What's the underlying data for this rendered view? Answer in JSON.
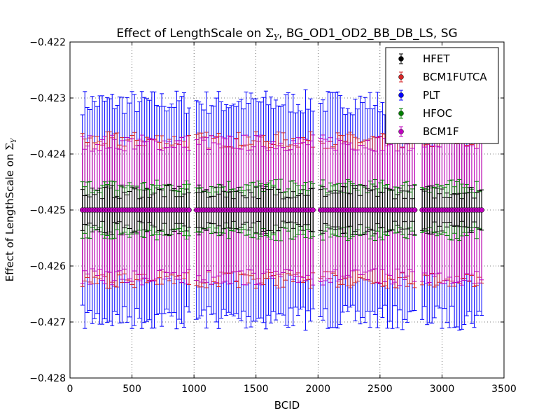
{
  "chart_data": {
    "type": "scatter",
    "title": "Effect of LengthScale on ΣY, BG_OD1_OD2_BB_DB_LS, SG",
    "title_parts": {
      "before": "Effect of LengthScale on ",
      "symbol": "Σ",
      "sub": "Y",
      "after": ", BG_OD1_OD2_BB_DB_LS, SG"
    },
    "xlabel": "BCID",
    "ylabel": "Effect of LengthScale on ΣY",
    "ylabel_parts": {
      "before": "Effect of LengthScale on ",
      "symbol": "Σ",
      "sub": "Y"
    },
    "xlim": [
      0,
      3500
    ],
    "ylim": [
      -0.428,
      -0.422
    ],
    "xticks": [
      0,
      500,
      1000,
      1500,
      2000,
      2500,
      3000,
      3500
    ],
    "yticks": [
      -0.428,
      -0.427,
      -0.426,
      -0.425,
      -0.424,
      -0.423,
      -0.422
    ],
    "xtick_labels": [
      "0",
      "500",
      "1000",
      "1500",
      "2000",
      "2500",
      "3000",
      "3500"
    ],
    "ytick_labels": [
      "−0.428",
      "−0.427",
      "−0.426",
      "−0.425",
      "−0.424",
      "−0.423",
      "−0.422"
    ],
    "grid": true,
    "legend_position": "top-right",
    "x_range": {
      "start": 100,
      "end": 3330,
      "step": 20,
      "gaps": [
        [
          980,
          1010
        ],
        [
          1970,
          2010
        ],
        [
          2790,
          2830
        ]
      ]
    },
    "y_value": -0.425,
    "series": [
      {
        "name": "HFET",
        "color": "#000000",
        "y": -0.425,
        "err_min": 0.0002,
        "err_max": 0.00045
      },
      {
        "name": "BCM1FUTCA",
        "color": "#d62728",
        "y": -0.425,
        "err_min": 0.0011,
        "err_max": 0.0014
      },
      {
        "name": "PLT",
        "color": "#0000ff",
        "y": -0.425,
        "err_min": 0.0017,
        "err_max": 0.00215
      },
      {
        "name": "HFOC",
        "color": "#008000",
        "y": -0.425,
        "err_min": 0.0003,
        "err_max": 0.00055
      },
      {
        "name": "BCM1F",
        "color": "#bf00bf",
        "y": -0.425,
        "err_min": 0.00105,
        "err_max": 0.00135
      }
    ]
  }
}
